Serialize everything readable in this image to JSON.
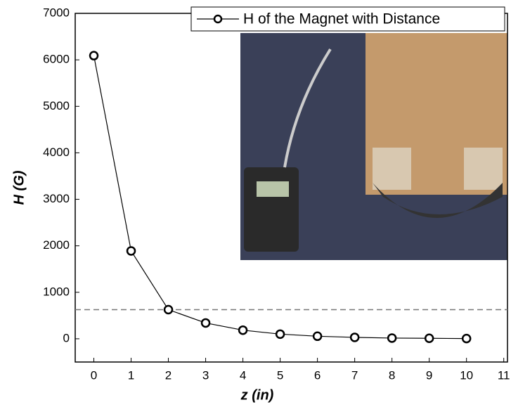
{
  "chart_data": {
    "type": "line",
    "x_label": "z (in)",
    "y_label": "H (G)",
    "x": [
      0,
      1,
      2,
      3,
      4,
      5,
      6,
      7,
      8,
      9,
      10
    ],
    "series": [
      {
        "name": "H of the Magnet with Distance",
        "color": "#000000",
        "values": [
          6090,
          1890,
          626,
          340,
          185,
          100,
          55,
          30,
          15,
          10,
          5
        ]
      }
    ],
    "xlim": [
      -0.5,
      11.1
    ],
    "ylim": [
      -500,
      7000
    ],
    "xticks": [
      0,
      1,
      2,
      3,
      4,
      5,
      6,
      7,
      8,
      9,
      10,
      11
    ],
    "yticks": [
      0,
      1000,
      2000,
      3000,
      4000,
      5000,
      6000,
      7000
    ],
    "hline": 626,
    "hline_color": "#777777",
    "legend": "upper right",
    "grid": false
  }
}
